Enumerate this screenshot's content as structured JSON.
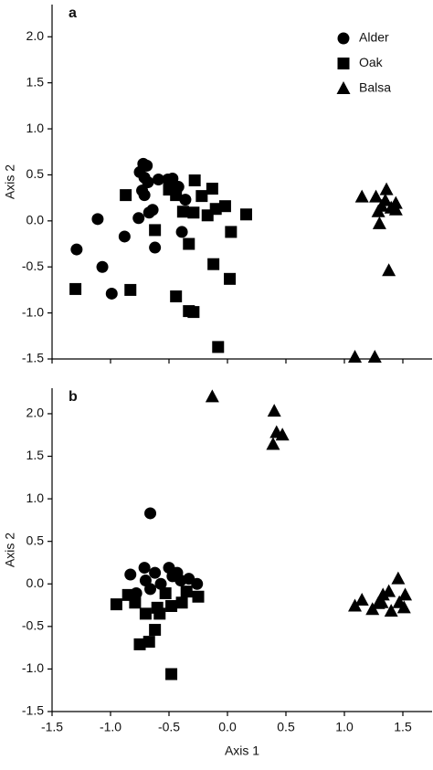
{
  "chart_data": [
    {
      "type": "scatter",
      "label": "a",
      "ylabel": "Axis 2",
      "legend": "upper right",
      "xlim": [
        -1.5,
        1.75
      ],
      "ylim": [
        -1.5,
        2.35
      ],
      "xticks": [
        -1.5,
        -1.0,
        -0.5,
        0.0,
        0.5,
        1.0,
        1.5
      ],
      "yticks": [
        {
          "value": -1.5,
          "label": "-1.5"
        },
        {
          "value": -1.0,
          "label": "-1.0"
        },
        {
          "value": -0.5,
          "label": "-0.5"
        },
        {
          "value": 0.0,
          "label": "0.0"
        },
        {
          "value": 0.5,
          "label": "0.5"
        },
        {
          "value": 1.0,
          "label": "1.0"
        },
        {
          "value": 1.5,
          "label": "1.5"
        },
        {
          "value": 2.0,
          "label": "2.0"
        }
      ],
      "series": [
        {
          "name": "Alder",
          "marker": "circle",
          "color": "#000000",
          "x": [
            -1.29,
            -1.11,
            -1.07,
            -0.99,
            -0.88,
            -0.76,
            -0.73,
            -0.75,
            -0.72,
            -0.69,
            -0.71,
            -0.71,
            -0.67,
            -0.68,
            -0.62,
            -0.59,
            -0.51,
            -0.47,
            -0.42,
            -0.36,
            -0.39,
            -0.64
          ],
          "values": [
            -0.31,
            0.02,
            -0.5,
            -0.79,
            -0.17,
            0.03,
            0.33,
            0.53,
            0.62,
            0.6,
            0.47,
            0.28,
            0.09,
            0.42,
            -0.29,
            0.45,
            0.45,
            0.46,
            0.37,
            0.23,
            -0.12,
            0.12
          ]
        },
        {
          "name": "Oak",
          "marker": "square",
          "color": "#000000",
          "x": [
            -1.3,
            -0.83,
            -0.87,
            -0.62,
            -0.5,
            -0.44,
            -0.38,
            -0.33,
            -0.28,
            -0.29,
            -0.22,
            -0.13,
            -0.17,
            -0.1,
            -0.02,
            0.03,
            0.16,
            -0.44,
            -0.33,
            -0.29,
            -0.12,
            0.02,
            -0.08
          ],
          "values": [
            -0.74,
            -0.75,
            0.28,
            -0.1,
            0.34,
            0.28,
            0.1,
            -0.25,
            0.44,
            0.09,
            0.27,
            0.35,
            0.06,
            0.13,
            0.16,
            -0.12,
            0.07,
            -0.82,
            -0.98,
            -0.99,
            -0.47,
            -0.63,
            -1.37
          ]
        },
        {
          "name": "Balsa",
          "marker": "triangle",
          "color": "#000000",
          "x": [
            1.15,
            1.27,
            1.36,
            1.32,
            1.29,
            1.4,
            1.44,
            1.35,
            1.3,
            1.38,
            1.09,
            1.26,
            1.44
          ],
          "values": [
            0.26,
            0.26,
            0.34,
            0.16,
            0.1,
            0.14,
            0.19,
            0.22,
            -0.03,
            -0.54,
            -1.48,
            -1.48,
            0.12
          ]
        }
      ]
    },
    {
      "type": "scatter",
      "label": "b",
      "xlabel": "Axis 1",
      "ylabel": "Axis 2",
      "xlim": [
        -1.5,
        1.75
      ],
      "ylim": [
        -1.5,
        2.3
      ],
      "xticks": [
        {
          "value": -1.5,
          "label": "-1.5"
        },
        {
          "value": -1.0,
          "label": "-1.0"
        },
        {
          "value": -0.5,
          "label": "-0.5"
        },
        {
          "value": 0.0,
          "label": "0.0"
        },
        {
          "value": 0.5,
          "label": "0.5"
        },
        {
          "value": 1.0,
          "label": "1.0"
        },
        {
          "value": 1.5,
          "label": "1.5"
        }
      ],
      "yticks": [
        {
          "value": -1.5,
          "label": "-1.5"
        },
        {
          "value": -1.0,
          "label": "-1.0"
        },
        {
          "value": -0.5,
          "label": "-0.5"
        },
        {
          "value": 0.0,
          "label": "0.0"
        },
        {
          "value": 0.5,
          "label": "0.5"
        },
        {
          "value": 1.0,
          "label": "1.0"
        },
        {
          "value": 1.5,
          "label": "1.5"
        },
        {
          "value": 2.0,
          "label": "2.0"
        }
      ],
      "series": [
        {
          "marker": "circle",
          "color": "#000000",
          "x": [
            -0.66,
            -0.83,
            -0.71,
            -0.7,
            -0.62,
            -0.5,
            -0.47,
            -0.4,
            -0.33,
            -0.26,
            -0.78,
            -0.57,
            -0.43,
            -0.66
          ],
          "values": [
            0.83,
            0.11,
            0.19,
            0.04,
            0.13,
            0.19,
            0.09,
            0.04,
            0.06,
            0.0,
            -0.11,
            0.0,
            0.13,
            -0.06
          ]
        },
        {
          "marker": "square",
          "color": "#000000",
          "x": [
            -0.95,
            -0.79,
            -0.6,
            -0.7,
            -0.58,
            -0.48,
            -0.39,
            -0.25,
            -0.35,
            -0.62,
            -0.67,
            -0.75,
            -0.48,
            -0.85,
            -0.53
          ],
          "values": [
            -0.24,
            -0.22,
            -0.28,
            -0.35,
            -0.35,
            -0.26,
            -0.22,
            -0.15,
            -0.09,
            -0.54,
            -0.68,
            -0.71,
            -1.06,
            -0.13,
            -0.11
          ]
        },
        {
          "marker": "triangle",
          "color": "#000000",
          "x": [
            -0.13,
            0.4,
            0.42,
            0.39,
            0.47,
            1.09,
            1.15,
            1.24,
            1.29,
            1.33,
            1.38,
            1.4,
            1.46,
            1.47,
            1.52,
            1.51,
            1.32
          ],
          "values": [
            2.2,
            2.03,
            1.78,
            1.64,
            1.75,
            -0.26,
            -0.19,
            -0.3,
            -0.23,
            -0.13,
            -0.09,
            -0.32,
            0.06,
            -0.22,
            -0.13,
            -0.28,
            -0.22
          ]
        }
      ]
    }
  ]
}
